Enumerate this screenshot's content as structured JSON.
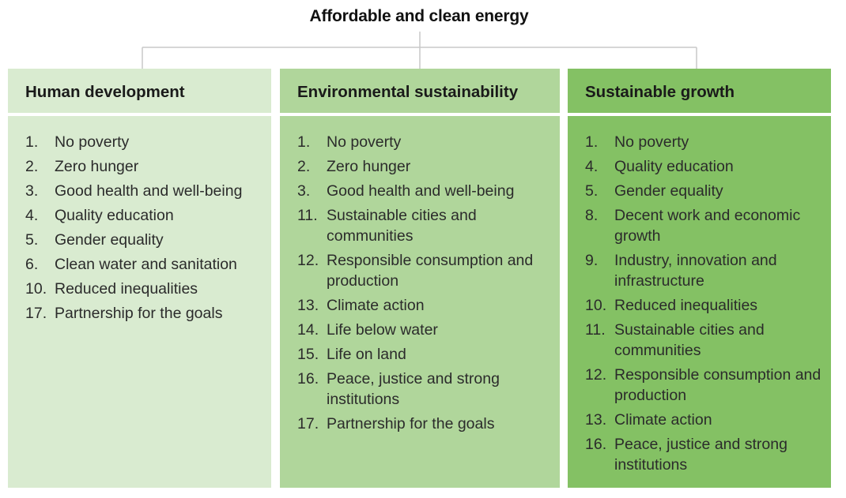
{
  "title": "Affordable and clean energy",
  "colors": {
    "human_development": "#d9ebd0",
    "environmental_sustainability": "#b0d69b",
    "sustainable_growth": "#84c164",
    "connector": "#c8c8c8"
  },
  "columns": [
    {
      "heading": "Human development",
      "goals": [
        {
          "num": "1.",
          "text": "No poverty"
        },
        {
          "num": "2.",
          "text": "Zero hunger"
        },
        {
          "num": "3.",
          "text": "Good health and well-being"
        },
        {
          "num": "4.",
          "text": "Quality education"
        },
        {
          "num": "5.",
          "text": "Gender equality"
        },
        {
          "num": "6.",
          "text": "Clean water and sanitation"
        },
        {
          "num": "10.",
          "text": "Reduced inequalities"
        },
        {
          "num": "17.",
          "text": "Partnership for the goals"
        }
      ]
    },
    {
      "heading": "Environmental sustainability",
      "goals": [
        {
          "num": "1.",
          "text": "No poverty"
        },
        {
          "num": "2.",
          "text": "Zero hunger"
        },
        {
          "num": "3.",
          "text": "Good health and well-being"
        },
        {
          "num": "11.",
          "text": "Sustainable cities and communities"
        },
        {
          "num": "12.",
          "text": "Responsible consumption and production"
        },
        {
          "num": "13.",
          "text": "Climate action"
        },
        {
          "num": "14.",
          "text": "Life below water"
        },
        {
          "num": "15.",
          "text": "Life on land"
        },
        {
          "num": "16.",
          "text": "Peace, justice and strong institutions"
        },
        {
          "num": "17.",
          "text": "Partnership for the goals"
        }
      ]
    },
    {
      "heading": "Sustainable growth",
      "goals": [
        {
          "num": "1.",
          "text": "No poverty"
        },
        {
          "num": "4.",
          "text": "Quality education"
        },
        {
          "num": "5.",
          "text": "Gender equality"
        },
        {
          "num": "8.",
          "text": "Decent work and economic growth"
        },
        {
          "num": "9.",
          "text": "Industry, innovation and infrastructure"
        },
        {
          "num": "10.",
          "text": "Reduced inequalities"
        },
        {
          "num": "11.",
          "text": "Sustainable cities and communities"
        },
        {
          "num": "12.",
          "text": "Responsible consumption and production"
        },
        {
          "num": "13.",
          "text": "Climate action"
        },
        {
          "num": "16.",
          "text": "Peace, justice and strong institutions"
        }
      ]
    }
  ]
}
